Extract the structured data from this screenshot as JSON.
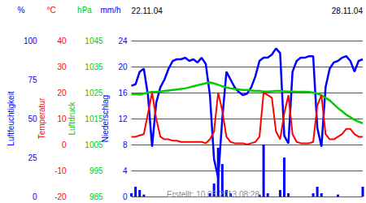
{
  "chart_data": {
    "type": "line",
    "categories": [
      "22.11.04",
      null,
      null,
      null,
      null,
      null,
      null,
      null,
      null,
      null,
      null,
      null,
      null,
      null,
      null,
      null,
      null,
      null,
      null,
      null,
      null,
      null,
      null,
      null,
      null,
      null,
      null,
      null,
      null,
      null,
      null,
      null,
      null,
      null,
      null,
      null,
      null,
      null,
      null,
      null,
      null,
      null,
      null,
      null,
      null,
      null,
      null,
      null,
      null,
      null,
      null,
      null,
      null,
      null,
      null,
      null,
      "28.11.04"
    ],
    "annotation": "Erstellt: 10.03.2013 08:28",
    "grid": true,
    "series": [
      {
        "name": "Luftfeuchtigkeit",
        "unit": "%",
        "color": "#0000ff",
        "ylim": [
          0,
          100
        ],
        "yticks": [
          0,
          25,
          50,
          75,
          100
        ],
        "values": [
          71,
          72,
          80,
          82,
          65,
          32,
          60,
          70,
          75,
          82,
          87,
          88,
          88,
          89,
          87,
          88,
          86,
          89,
          85,
          65,
          24,
          12,
          50,
          80,
          75,
          70,
          67,
          65,
          66,
          70,
          77,
          87,
          89,
          89,
          91,
          95,
          92,
          39,
          34,
          80,
          87,
          89,
          89,
          90,
          90,
          44,
          32,
          70,
          82,
          86,
          87,
          89,
          90,
          87,
          80,
          87,
          88
        ]
      },
      {
        "name": "Temperatur",
        "unit": "°C",
        "color": "#ff0000",
        "ylim": [
          -20,
          40
        ],
        "yticks": [
          -20,
          -10,
          0,
          10,
          20,
          30,
          40
        ],
        "values": [
          3,
          3,
          3.5,
          4,
          12,
          20,
          10,
          3,
          2,
          2,
          1.5,
          1.5,
          1,
          1,
          1,
          1,
          1,
          1,
          0.5,
          2,
          5,
          20,
          13,
          3,
          1,
          0.5,
          0.5,
          0.5,
          0,
          0.5,
          1,
          3,
          20,
          19,
          18,
          5,
          2,
          12,
          19,
          4,
          1,
          0.5,
          0.5,
          0.5,
          1,
          15,
          19,
          4,
          2,
          2,
          3,
          4,
          6,
          6,
          4,
          3,
          3
        ]
      },
      {
        "name": "Luftdruck",
        "unit": "hPa",
        "color": "#00cc00",
        "ylim": [
          985,
          1045
        ],
        "yticks": [
          985,
          995,
          1005,
          1015,
          1025,
          1035,
          1045
        ],
        "values": [
          1024.4,
          1024.4,
          1024.2,
          1024.6,
          1025,
          1025.2,
          1025.2,
          1025.4,
          1025.6,
          1025.8,
          1026,
          1026.2,
          1026.4,
          1026.6,
          1027,
          1027.4,
          1027.8,
          1028.2,
          1028.6,
          1028.9,
          1028.5,
          1028,
          1027.4,
          1027,
          1026.6,
          1026.4,
          1026.2,
          1026,
          1026,
          1025.8,
          1025.6,
          1025.6,
          1025.4,
          1025.4,
          1025.5,
          1025.6,
          1025.6,
          1025.5,
          1025.4,
          1025.4,
          1025.3,
          1025.3,
          1025.3,
          1025.2,
          1025,
          1024.6,
          1024,
          1023,
          1022,
          1020.5,
          1019,
          1017.8,
          1016.5,
          1015.5,
          1014.5,
          1013.8,
          1013.2
        ]
      },
      {
        "name": "Niederschlag",
        "unit": "mm/h",
        "color": "#0000ff",
        "type": "bar",
        "ylim": [
          0,
          24
        ],
        "yticks": [
          0,
          4,
          8,
          12,
          16,
          20,
          24
        ],
        "values": [
          0.5,
          1.5,
          1,
          0.3,
          0,
          0,
          0,
          0,
          0,
          0,
          0,
          0,
          0,
          0,
          0,
          0,
          0,
          0,
          0,
          0.5,
          2,
          7.5,
          5,
          1,
          0.5,
          0,
          0,
          0,
          0,
          0,
          0,
          0.3,
          8,
          0.5,
          0,
          0,
          1,
          6,
          0.5,
          0,
          0,
          0,
          0,
          0,
          0.5,
          1.5,
          0.5,
          0,
          0,
          0,
          0.3,
          0,
          0,
          0,
          0,
          0,
          1.5
        ]
      }
    ]
  }
}
